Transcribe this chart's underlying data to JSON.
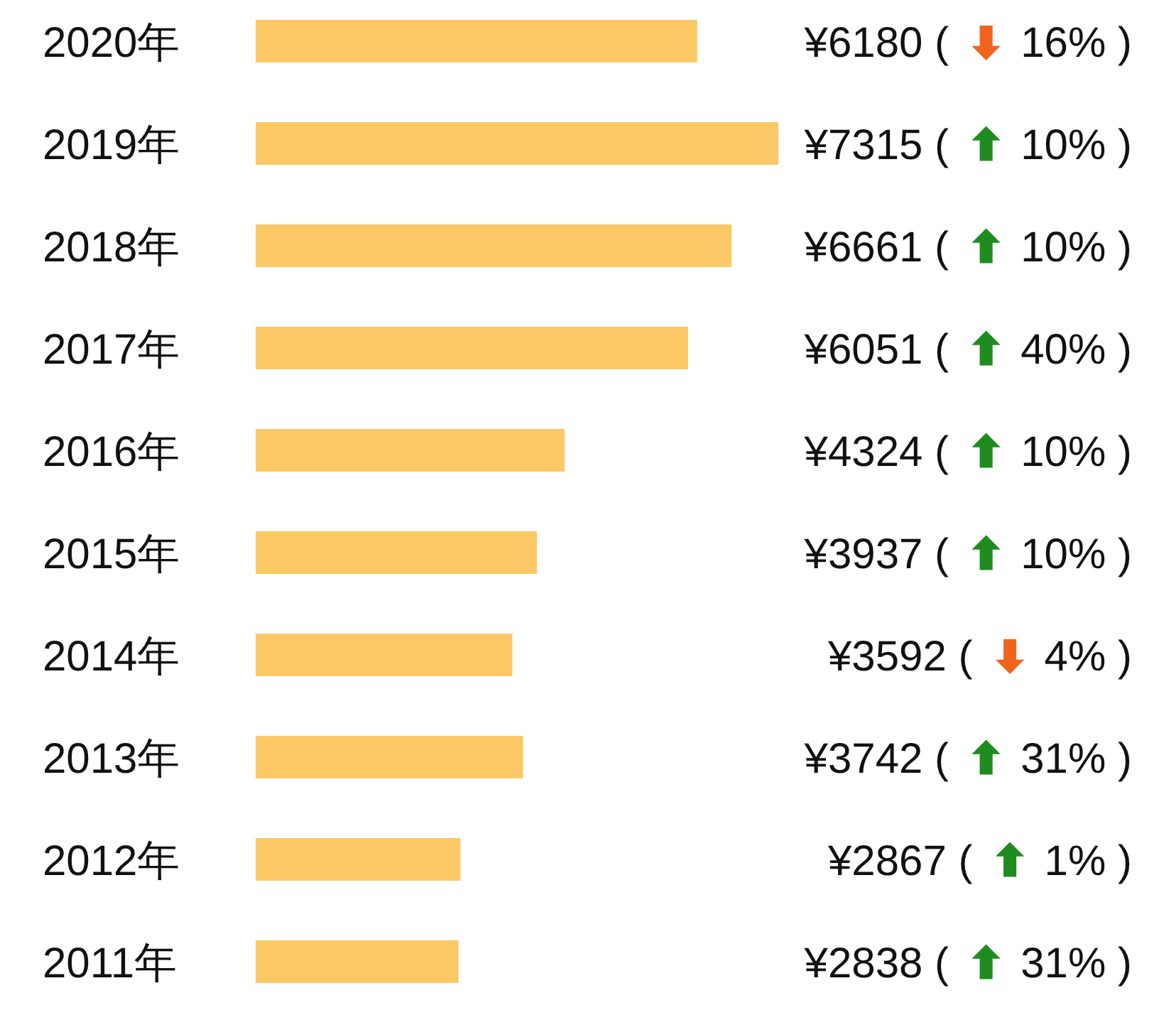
{
  "chart_data": {
    "type": "bar",
    "orientation": "horizontal",
    "color": "#fcc865",
    "categories": [
      "2020年",
      "2019年",
      "2018年",
      "2017年",
      "2016年",
      "2015年",
      "2014年",
      "2013年",
      "2012年",
      "2011年"
    ],
    "values": [
      6180,
      7315,
      6661,
      6051,
      4324,
      3937,
      3592,
      3742,
      2867,
      2838
    ],
    "value_labels": [
      "¥6180 ( ⬇ 16% )",
      "¥7315 ( ⬆ 10% )",
      "¥6661 ( ⬆ 10% )",
      "¥6051 ( ⬆ 40% )",
      "¥4324 ( ⬆ 10% )",
      "¥3937 ( ⬆ 10% )",
      "¥3592 ( ⬇ 4% )",
      "¥3742 ( ⬆ 31% )",
      "¥2867 ( ⬆ 1% )",
      "¥2838 ( ⬆ 31% )"
    ]
  }
}
